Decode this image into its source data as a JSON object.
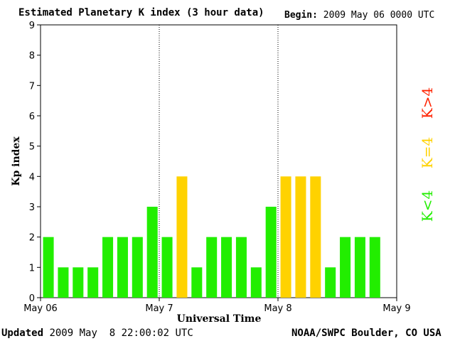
{
  "header": {
    "title": "Estimated Planetary K index (3 hour data)",
    "begin_label": "Begin:",
    "begin_value": "2009 May 06 0000 UTC"
  },
  "footer": {
    "updated_label": "Updated",
    "updated_value": "2009 May  8 22:00:02 UTC",
    "credit": "NOAA/SWPC Boulder, CO USA"
  },
  "legend": [
    {
      "label": "K>4",
      "color": "#ff2200"
    },
    {
      "label": "K=4",
      "color": "#ffd200"
    },
    {
      "label": "K<4",
      "color": "#22ee00"
    }
  ],
  "colors": {
    "below4": "#22ee00",
    "equal4": "#ffd200",
    "above4": "#ff2200"
  },
  "chart_data": {
    "type": "bar",
    "xlabel": "Universal Time",
    "ylabel": "Kp index",
    "ylim": [
      0,
      9
    ],
    "yticks": [
      "0",
      "1",
      "2",
      "3",
      "4",
      "5",
      "6",
      "7",
      "8",
      "9"
    ],
    "xtick_labels": [
      "May 06",
      "May 7",
      "May 8",
      "May 9"
    ],
    "grid": "vertical day separators",
    "legend_placement": "right",
    "values": [
      2,
      1,
      1,
      1,
      2,
      2,
      2,
      3,
      2,
      4,
      1,
      2,
      2,
      2,
      1,
      3,
      4,
      4,
      4,
      1,
      2,
      2,
      2
    ]
  }
}
